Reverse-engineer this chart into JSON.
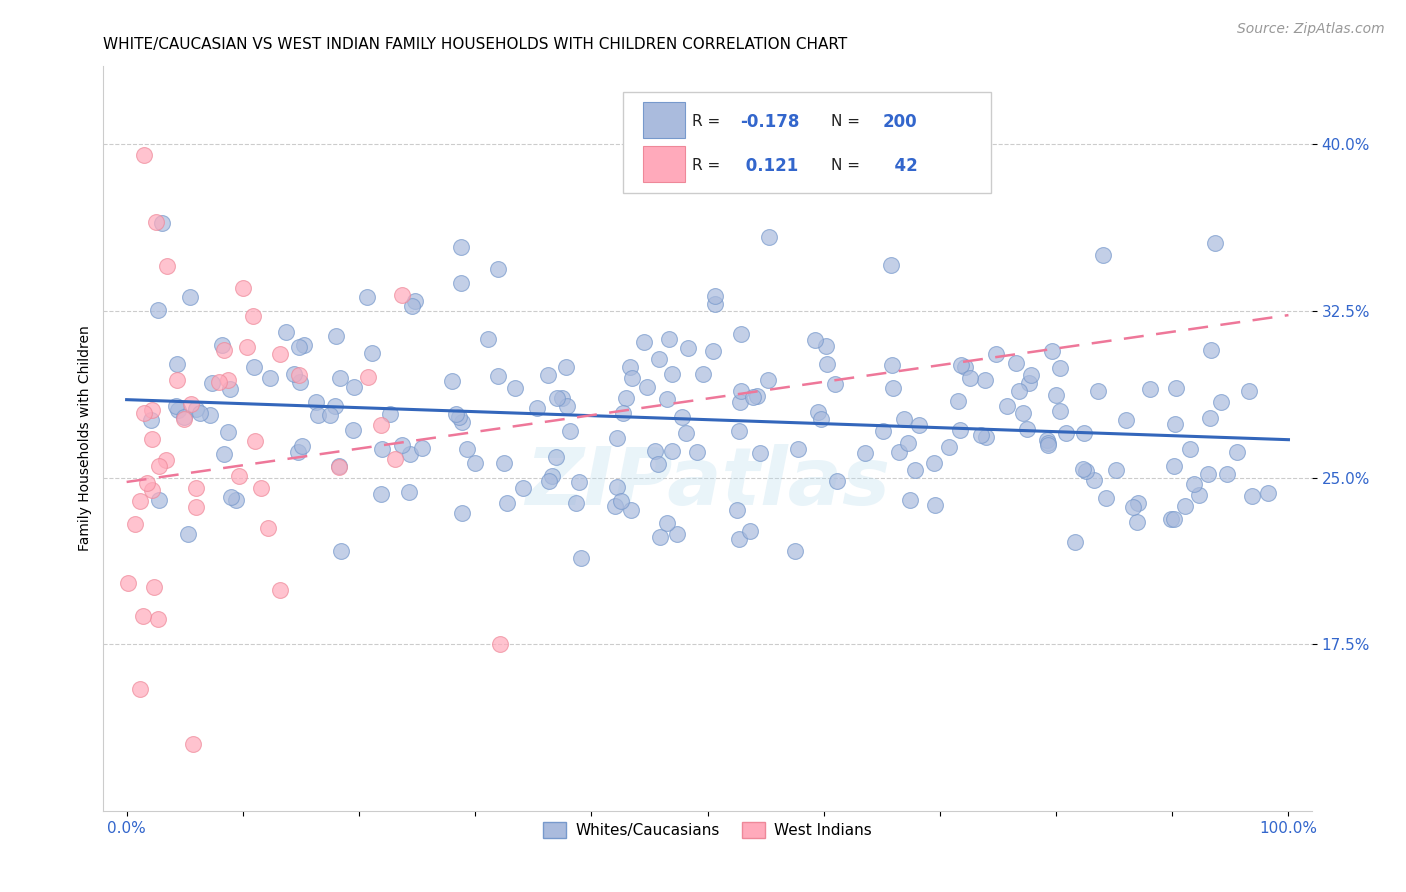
{
  "title": "WHITE/CAUCASIAN VS WEST INDIAN FAMILY HOUSEHOLDS WITH CHILDREN CORRELATION CHART",
  "source": "Source: ZipAtlas.com",
  "ylabel": "Family Households with Children",
  "xlim": [
    -0.02,
    1.02
  ],
  "ylim": [
    0.1,
    0.435
  ],
  "yticks": [
    0.175,
    0.25,
    0.325,
    0.4
  ],
  "ytick_labels": [
    "17.5%",
    "25.0%",
    "32.5%",
    "40.0%"
  ],
  "xtick_labels": [
    "0.0%",
    "100.0%"
  ],
  "blue_color": "#AABBDD",
  "blue_face": "#AABBDD",
  "blue_edge": "#7799CC",
  "pink_color": "#FFAABB",
  "pink_face": "#FFAABB",
  "pink_edge": "#EE8899",
  "trend_blue_color": "#3366BB",
  "trend_pink_color": "#EE7799",
  "R_blue": -0.178,
  "N_blue": 200,
  "R_pink": 0.121,
  "N_pink": 42,
  "legend_label_blue": "Whites/Caucasians",
  "legend_label_pink": "West Indians",
  "title_fontsize": 11,
  "label_fontsize": 10,
  "tick_fontsize": 11,
  "source_fontsize": 10,
  "watermark": "ZIPatlas",
  "blue_intercept": 0.285,
  "blue_slope": -0.018,
  "pink_intercept": 0.248,
  "pink_slope": 0.075
}
